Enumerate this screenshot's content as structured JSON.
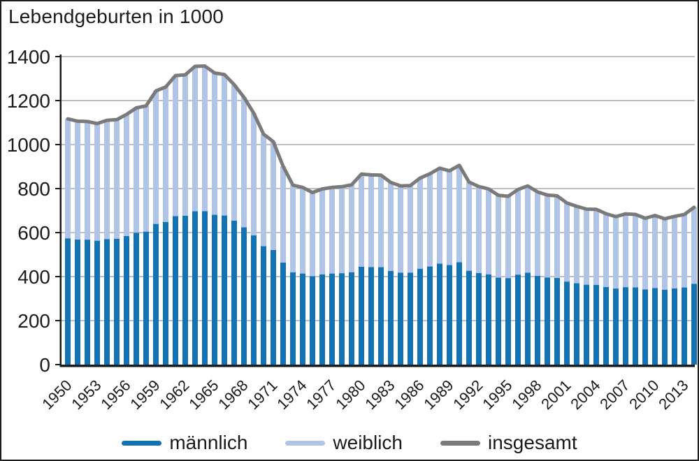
{
  "chart_data": {
    "type": "bar",
    "stacked": true,
    "title": "Lebendgeburten in 1000",
    "grid": true,
    "legend_position": "bottom",
    "ylim": [
      0,
      1400
    ],
    "yticks": [
      0,
      200,
      400,
      600,
      800,
      1000,
      1200,
      1400
    ],
    "xtick_labels": [
      "1950",
      "1953",
      "1956",
      "1959",
      "1962",
      "1965",
      "1968",
      "1971",
      "1974",
      "1977",
      "1980",
      "1983",
      "1986",
      "1989",
      "1992",
      "1995",
      "1998",
      "2001",
      "2004",
      "2007",
      "2010",
      "2013"
    ],
    "years": [
      1950,
      1951,
      1952,
      1953,
      1954,
      1955,
      1956,
      1957,
      1958,
      1959,
      1960,
      1961,
      1962,
      1963,
      1964,
      1965,
      1966,
      1967,
      1968,
      1969,
      1970,
      1971,
      1972,
      1973,
      1974,
      1975,
      1976,
      1977,
      1978,
      1979,
      1980,
      1981,
      1982,
      1983,
      1984,
      1985,
      1986,
      1987,
      1988,
      1989,
      1990,
      1991,
      1992,
      1993,
      1994,
      1995,
      1996,
      1997,
      1998,
      1999,
      2000,
      2001,
      2002,
      2003,
      2004,
      2005,
      2006,
      2007,
      2008,
      2009,
      2010,
      2011,
      2012,
      2013,
      2014
    ],
    "series": [
      {
        "name": "männlich",
        "type": "bar",
        "color": "#1172b4",
        "values": [
          574.0,
          568.7,
          568.0,
          563.1,
          570.7,
          572.3,
          584.5,
          599.6,
          604.4,
          639.4,
          648.5,
          675.1,
          676.9,
          696.8,
          697.7,
          681.3,
          677.6,
          654.0,
          624.5,
          587.2,
          538.5,
          520.9,
          463.5,
          419.4,
          414.0,
          402.1,
          410.3,
          414.0,
          415.6,
          420.0,
          445.0,
          443.1,
          442.7,
          425.5,
          417.5,
          418.3,
          435.9,
          445.8,
          458.9,
          452.6,
          465.5,
          426.6,
          415.9,
          410.4,
          395.6,
          393.3,
          409.1,
          417.5,
          403.5,
          396.1,
          394.2,
          377.5,
          369.7,
          363.2,
          362.7,
          352.5,
          345.8,
          352.1,
          350.8,
          341.9,
          348.4,
          340.6,
          346.2,
          350.6,
          367.4
        ]
      },
      {
        "name": "weiblich",
        "type": "bar",
        "color": "#b0c4e8",
        "values": [
          542.7,
          537.7,
          537.1,
          532.4,
          539.7,
          541.1,
          552.7,
          567.0,
          571.5,
          604.5,
          613.1,
          638.4,
          640.1,
          658.8,
          659.6,
          644.1,
          640.7,
          618.3,
          590.4,
          555.2,
          509.2,
          492.5,
          438.2,
          396.5,
          391.5,
          380.2,
          388.0,
          391.5,
          393.0,
          397.2,
          420.8,
          419.0,
          418.6,
          402.4,
          394.8,
          395.5,
          412.1,
          421.6,
          433.9,
          427.9,
          440.2,
          403.4,
          393.2,
          388.0,
          374.0,
          371.9,
          386.9,
          394.7,
          381.5,
          374.6,
          372.8,
          357.0,
          349.6,
          343.5,
          342.9,
          333.3,
          326.9,
          332.9,
          331.7,
          323.2,
          329.5,
          322.1,
          327.3,
          331.5,
          347.5
        ]
      },
      {
        "name": "insgesamt",
        "type": "line",
        "color": "#7a7a7a",
        "values": [
          1116.7,
          1106.4,
          1105.1,
          1095.5,
          1110.4,
          1113.4,
          1137.2,
          1166.6,
          1175.9,
          1243.9,
          1261.6,
          1313.5,
          1317.0,
          1355.6,
          1357.3,
          1325.4,
          1318.3,
          1272.3,
          1214.9,
          1142.4,
          1047.7,
          1013.4,
          901.7,
          815.9,
          805.5,
          782.3,
          798.3,
          805.5,
          808.6,
          817.2,
          865.8,
          862.1,
          861.3,
          827.9,
          812.3,
          813.8,
          848.0,
          867.4,
          892.8,
          880.5,
          905.7,
          830.0,
          809.1,
          798.4,
          769.6,
          765.2,
          796.0,
          812.2,
          785.0,
          770.7,
          767.0,
          734.5,
          719.3,
          706.7,
          705.6,
          685.8,
          672.7,
          685.0,
          682.5,
          665.1,
          677.9,
          662.7,
          673.5,
          682.1,
          714.9
        ]
      }
    ],
    "colors": {
      "axis": "#1a1a1a",
      "grid": "#999999",
      "text": "#1a1a1a",
      "background": "#ffffff"
    }
  }
}
